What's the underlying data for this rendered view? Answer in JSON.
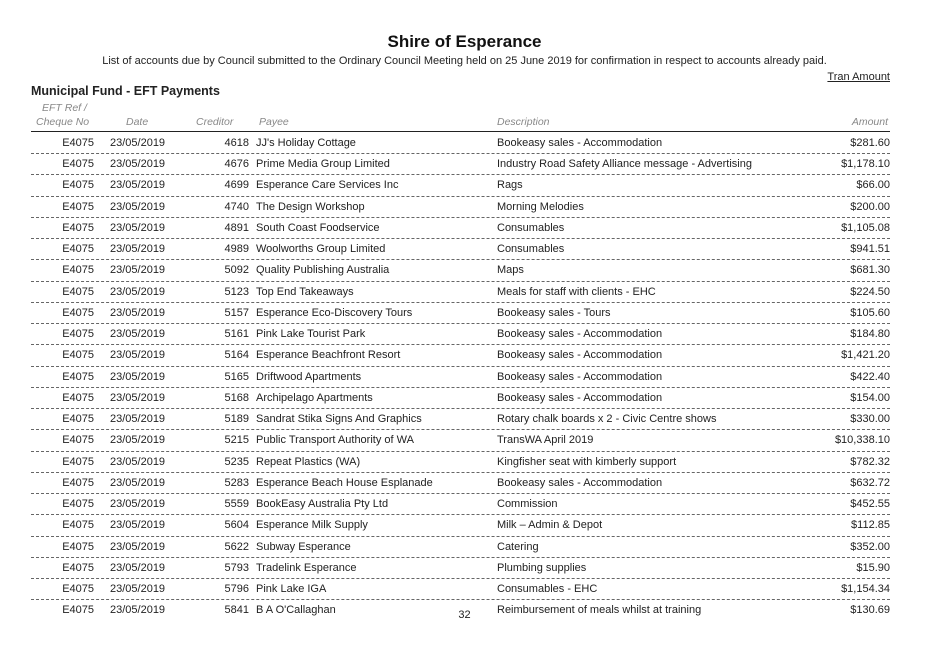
{
  "header": {
    "title": "Shire of Esperance",
    "subtitle": "List of accounts due by Council submitted to the Ordinary Council Meeting held on 25 June 2019 for confirmation in respect to accounts already paid.",
    "tran_amount": "Tran Amount",
    "section": "Municipal Fund - EFT Payments"
  },
  "columns": {
    "ref_line1": "EFT Ref /",
    "ref_line2": "Cheque No",
    "date": "Date",
    "creditor": "Creditor",
    "payee": "Payee",
    "description": "Description",
    "amount": "Amount"
  },
  "rows": [
    {
      "ref": "E4075",
      "date": "23/05/2019",
      "creditor": "4618",
      "payee": "JJ's Holiday Cottage",
      "description": "Bookeasy sales - Accommodation",
      "amount": "$281.60"
    },
    {
      "ref": "E4075",
      "date": "23/05/2019",
      "creditor": "4676",
      "payee": "Prime Media Group Limited",
      "description": "Industry Road Safety Alliance message - Advertising",
      "amount": "$1,178.10"
    },
    {
      "ref": "E4075",
      "date": "23/05/2019",
      "creditor": "4699",
      "payee": "Esperance Care Services Inc",
      "description": "Rags",
      "amount": "$66.00"
    },
    {
      "ref": "E4075",
      "date": "23/05/2019",
      "creditor": "4740",
      "payee": "The Design Workshop",
      "description": "Morning Melodies",
      "amount": "$200.00"
    },
    {
      "ref": "E4075",
      "date": "23/05/2019",
      "creditor": "4891",
      "payee": "South Coast Foodservice",
      "description": "Consumables",
      "amount": "$1,105.08"
    },
    {
      "ref": "E4075",
      "date": "23/05/2019",
      "creditor": "4989",
      "payee": "Woolworths Group Limited",
      "description": "Consumables",
      "amount": "$941.51"
    },
    {
      "ref": "E4075",
      "date": "23/05/2019",
      "creditor": "5092",
      "payee": "Quality Publishing Australia",
      "description": "Maps",
      "amount": "$681.30"
    },
    {
      "ref": "E4075",
      "date": "23/05/2019",
      "creditor": "5123",
      "payee": "Top End Takeaways",
      "description": "Meals for staff with clients - EHC",
      "amount": "$224.50"
    },
    {
      "ref": "E4075",
      "date": "23/05/2019",
      "creditor": "5157",
      "payee": "Esperance Eco-Discovery Tours",
      "description": "Bookeasy sales - Tours",
      "amount": "$105.60"
    },
    {
      "ref": "E4075",
      "date": "23/05/2019",
      "creditor": "5161",
      "payee": "Pink Lake Tourist Park",
      "description": "Bookeasy sales - Accommodation",
      "amount": "$184.80"
    },
    {
      "ref": "E4075",
      "date": "23/05/2019",
      "creditor": "5164",
      "payee": "Esperance Beachfront Resort",
      "description": "Bookeasy sales - Accommodation",
      "amount": "$1,421.20"
    },
    {
      "ref": "E4075",
      "date": "23/05/2019",
      "creditor": "5165",
      "payee": "Driftwood Apartments",
      "description": "Bookeasy sales - Accommodation",
      "amount": "$422.40"
    },
    {
      "ref": "E4075",
      "date": "23/05/2019",
      "creditor": "5168",
      "payee": "Archipelago Apartments",
      "description": "Bookeasy sales - Accommodation",
      "amount": "$154.00"
    },
    {
      "ref": "E4075",
      "date": "23/05/2019",
      "creditor": "5189",
      "payee": "Sandrat Stika Signs And Graphics",
      "description": "Rotary chalk boards x 2 - Civic Centre shows",
      "amount": "$330.00"
    },
    {
      "ref": "E4075",
      "date": "23/05/2019",
      "creditor": "5215",
      "payee": "Public Transport Authority of WA",
      "description": "TransWA April 2019",
      "amount": "$10,338.10"
    },
    {
      "ref": "E4075",
      "date": "23/05/2019",
      "creditor": "5235",
      "payee": "Repeat Plastics (WA)",
      "description": "Kingfisher seat with kimberly support",
      "amount": "$782.32"
    },
    {
      "ref": "E4075",
      "date": "23/05/2019",
      "creditor": "5283",
      "payee": "Esperance Beach House Esplanade",
      "description": "Bookeasy sales - Accommodation",
      "amount": "$632.72"
    },
    {
      "ref": "E4075",
      "date": "23/05/2019",
      "creditor": "5559",
      "payee": "BookEasy Australia Pty Ltd",
      "description": "Commission",
      "amount": "$452.55"
    },
    {
      "ref": "E4075",
      "date": "23/05/2019",
      "creditor": "5604",
      "payee": "Esperance Milk Supply",
      "description": "Milk – Admin & Depot",
      "amount": "$112.85"
    },
    {
      "ref": "E4075",
      "date": "23/05/2019",
      "creditor": "5622",
      "payee": "Subway Esperance",
      "description": "Catering",
      "amount": "$352.00"
    },
    {
      "ref": "E4075",
      "date": "23/05/2019",
      "creditor": "5793",
      "payee": "Tradelink Esperance",
      "description": "Plumbing supplies",
      "amount": "$15.90"
    },
    {
      "ref": "E4075",
      "date": "23/05/2019",
      "creditor": "5796",
      "payee": "Pink Lake IGA",
      "description": "Consumables - EHC",
      "amount": "$1,154.34"
    },
    {
      "ref": "E4075",
      "date": "23/05/2019",
      "creditor": "5841",
      "payee": "B A O'Callaghan",
      "description": "Reimbursement of meals whilst at training",
      "amount": "$130.69"
    }
  ],
  "footer": {
    "page_number": "32"
  }
}
